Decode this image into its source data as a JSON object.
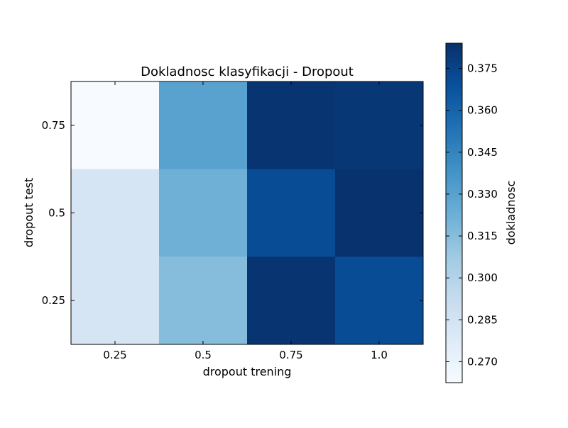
{
  "chart_data": {
    "type": "heatmap",
    "title": "Dokladnosc klasyfikacji - Dropout",
    "xlabel": "dropout trening",
    "ylabel": "dropout test",
    "x_categories": [
      "0.25",
      "0.5",
      "0.75",
      "1.0"
    ],
    "y_categories": [
      "0.75",
      "0.5",
      "0.25"
    ],
    "values": [
      [
        0.262,
        0.33,
        0.382,
        0.381
      ],
      [
        0.283,
        0.322,
        0.371,
        0.383
      ],
      [
        0.283,
        0.315,
        0.382,
        0.371
      ]
    ],
    "colorbar": {
      "label": "dokladnosc",
      "ticks": [
        "0.270",
        "0.285",
        "0.300",
        "0.315",
        "0.330",
        "0.345",
        "0.360",
        "0.375"
      ],
      "range": [
        0.2625,
        0.384
      ],
      "colormap": "Blues",
      "colormap_stops": [
        "#f7fbff",
        "#deebf7",
        "#c6dbef",
        "#9ecae1",
        "#6baed6",
        "#4292c6",
        "#2171b5",
        "#08519c",
        "#08306b"
      ]
    },
    "grid": false
  }
}
